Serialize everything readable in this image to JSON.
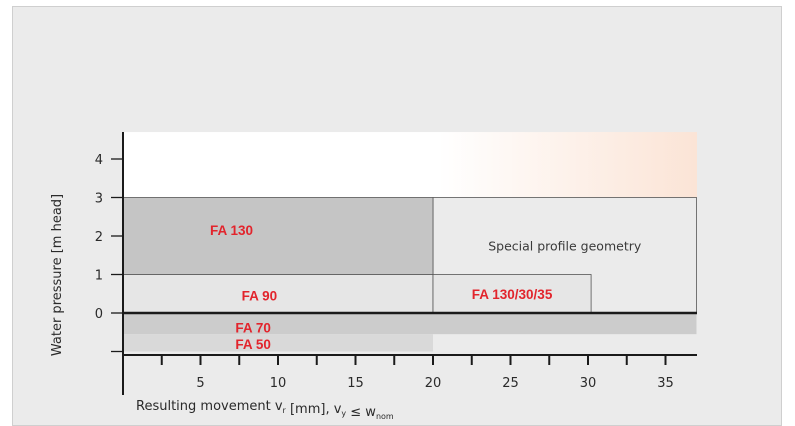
{
  "chart_data": {
    "type": "area",
    "xlabel": {
      "main": "Resulting movement v",
      "sub1": "r",
      "mid": " [mm], v",
      "sub2": "y",
      "rel": " ≤ w",
      "sub3": "nom"
    },
    "ylabel": "Water pressure [m head]",
    "xlim": [
      0,
      37
    ],
    "ylim": [
      -1,
      4.7
    ],
    "x_ticks": [
      5,
      10,
      15,
      20,
      25,
      30,
      35
    ],
    "x_ticks_unlabeled": [
      2.5,
      7.5,
      12.5,
      17.5,
      22.5,
      27.5,
      32.5
    ],
    "y_ticks": [
      0,
      1,
      2,
      3,
      4
    ],
    "y_ticks_unlabeled": [
      -1
    ],
    "regions": [
      {
        "name": "FA 130",
        "x": [
          0,
          20
        ],
        "y": [
          1,
          3
        ],
        "color": "#c5c5c5"
      },
      {
        "name": "FA 90",
        "x": [
          0,
          20
        ],
        "y": [
          0,
          1
        ],
        "color": "#e6e6e6"
      },
      {
        "name": "FA 130/30/35",
        "x": [
          20,
          30.2
        ],
        "y": [
          0,
          1
        ],
        "color": "#e6e6e6"
      },
      {
        "name": "Special profile geometry",
        "x": [
          20,
          37
        ],
        "y": [
          0,
          3
        ],
        "color": "#ebebeb"
      },
      {
        "name": "FA 70",
        "x": [
          0,
          37
        ],
        "y": [
          -0.55,
          0
        ],
        "color": "#cccccc"
      },
      {
        "name": "FA 50",
        "x": [
          0,
          20
        ],
        "y": [
          -1,
          -0.55
        ],
        "color": "#d9d9d9"
      }
    ],
    "colors": {
      "label_red": "#e2242c",
      "background": "#ebebeb",
      "axis": "#1a1a1a"
    }
  }
}
